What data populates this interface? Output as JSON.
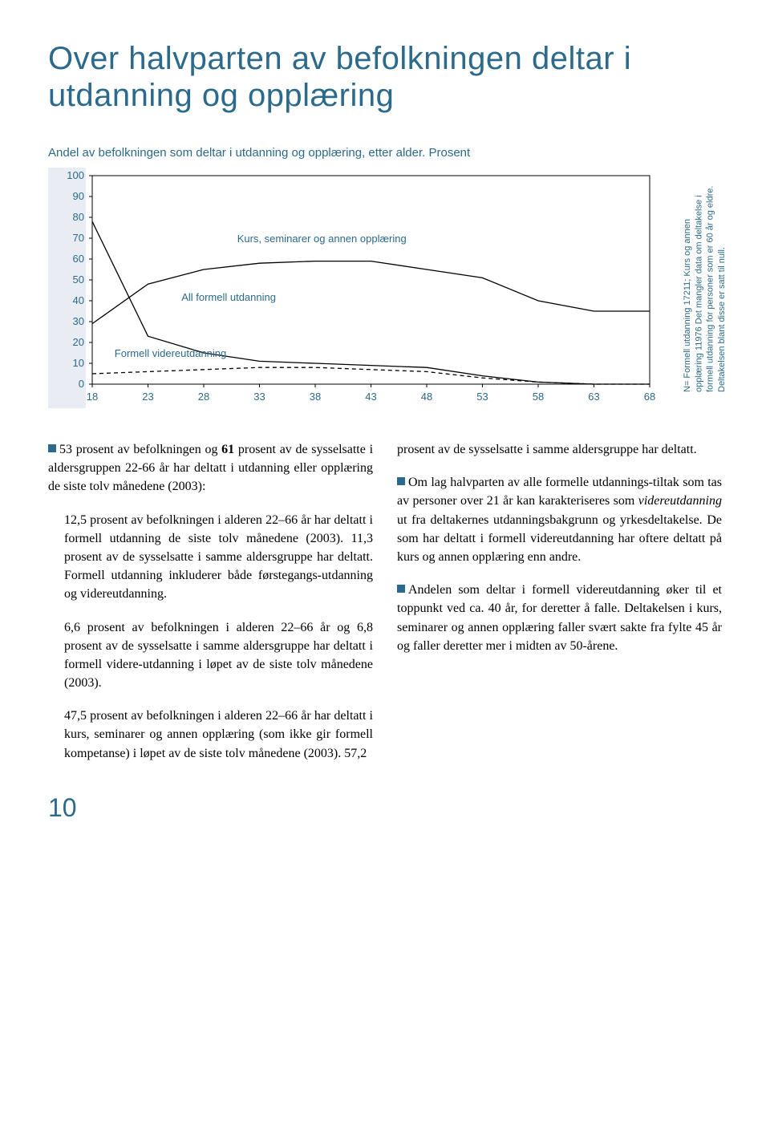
{
  "title": "Over halvparten av befolkningen deltar i utdanning og opplæring",
  "chart": {
    "caption": "Andel av befolkningen som deltar i utdanning og opplæring, etter alder. Prosent",
    "type": "line",
    "x_ticks": [
      18,
      23,
      28,
      33,
      38,
      43,
      48,
      53,
      58,
      63,
      68
    ],
    "y_ticks": [
      0,
      10,
      20,
      30,
      40,
      50,
      60,
      70,
      80,
      90,
      100
    ],
    "ylim": [
      0,
      100
    ],
    "xlim": [
      18,
      68
    ],
    "background_color": "#ffffff",
    "yband_color": "#e9edf3",
    "axis_color": "#000000",
    "tick_fontsize": 13,
    "label_fontsize": 13,
    "line_color": "#000000",
    "line_width": 1.3,
    "series": [
      {
        "name": "Kurs, seminarer og annen opplæring",
        "label": "Kurs, seminarer og annen opplæring",
        "label_pos": {
          "x": 31,
          "y": 68
        },
        "dash": "none",
        "points": [
          {
            "x": 18,
            "y": 29
          },
          {
            "x": 23,
            "y": 48
          },
          {
            "x": 28,
            "y": 55
          },
          {
            "x": 33,
            "y": 58
          },
          {
            "x": 38,
            "y": 59
          },
          {
            "x": 43,
            "y": 59
          },
          {
            "x": 48,
            "y": 55
          },
          {
            "x": 53,
            "y": 51
          },
          {
            "x": 58,
            "y": 40
          },
          {
            "x": 63,
            "y": 35
          },
          {
            "x": 68,
            "y": 35
          }
        ]
      },
      {
        "name": "All formell utdanning",
        "label": "All formell utdanning",
        "label_pos": {
          "x": 26,
          "y": 40
        },
        "dash": "none",
        "points": [
          {
            "x": 18,
            "y": 78
          },
          {
            "x": 23,
            "y": 23
          },
          {
            "x": 28,
            "y": 15
          },
          {
            "x": 33,
            "y": 11
          },
          {
            "x": 38,
            "y": 10
          },
          {
            "x": 43,
            "y": 9
          },
          {
            "x": 48,
            "y": 8
          },
          {
            "x": 53,
            "y": 4
          },
          {
            "x": 58,
            "y": 1
          },
          {
            "x": 63,
            "y": 0
          },
          {
            "x": 68,
            "y": 0
          }
        ]
      },
      {
        "name": "Formell videreutdanning",
        "label": "Formell videreutdanning",
        "label_pos": {
          "x": 20,
          "y": 13
        },
        "dash": "5,4",
        "points": [
          {
            "x": 18,
            "y": 5
          },
          {
            "x": 23,
            "y": 6
          },
          {
            "x": 28,
            "y": 7
          },
          {
            "x": 33,
            "y": 8
          },
          {
            "x": 38,
            "y": 8
          },
          {
            "x": 43,
            "y": 7
          },
          {
            "x": 48,
            "y": 6
          },
          {
            "x": 53,
            "y": 3
          },
          {
            "x": 58,
            "y": 1
          },
          {
            "x": 63,
            "y": 0
          },
          {
            "x": 68,
            "y": 0
          }
        ]
      }
    ],
    "side_note": "N= Formell utdanning 17211; Kurs og annen opplæring 11976 Det mangler data om deltakelse i formell utdanning for personer som er 60 år og eldre. Deltakelsen blant disse er satt til null."
  },
  "left_col": {
    "p1a": "53 prosent av befolkningen og ",
    "p1b": "61",
    "p1c": " prosent av de sysselsatte i aldersgruppen 22-66 år har deltatt i utdanning eller opplæring de siste tolv månedene (2003):",
    "p2": "12,5 prosent av befolkningen i alderen 22–66 år har deltatt i formell utdanning de siste tolv månedene (2003). 11,3 prosent av de sysselsatte i samme aldersgruppe har deltatt. Formell utdanning inkluderer både førstegangs-utdanning og videreutdanning.",
    "p3": "6,6 prosent av befolkningen i alderen 22–66 år og 6,8 prosent av de sysselsatte i samme aldersgruppe har deltatt i formell videre-utdanning i løpet av de siste tolv månedene (2003).",
    "p4": "47,5 prosent av befolkningen i alderen 22–66 år har deltatt i kurs, seminarer og annen opplæring (som ikke gir formell kompetanse) i løpet av de siste tolv månedene (2003). 57,2"
  },
  "right_col": {
    "p1": "prosent av de sysselsatte i samme aldersgruppe har deltatt.",
    "p2a": "Om lag halvparten av alle formelle utdannings-tiltak som tas av personer over 21 år kan karakteriseres som ",
    "p2b": "videreutdanning",
    "p2c": " ut fra deltakernes utdanningsbakgrunn og yrkesdeltakelse. De som har deltatt i formell videreutdanning har oftere deltatt på kurs og annen opplæring enn andre.",
    "p3": "Andelen som deltar i formell videreutdanning øker til et toppunkt ved ca. 40 år, for deretter å falle. Deltakelsen i kurs, seminarer og annen opplæring faller svært sakte fra fylte 45 år og faller deretter mer i midten av 50-årene."
  },
  "page_number": "10",
  "colors": {
    "heading": "#2b6a8c",
    "text": "#000000"
  }
}
